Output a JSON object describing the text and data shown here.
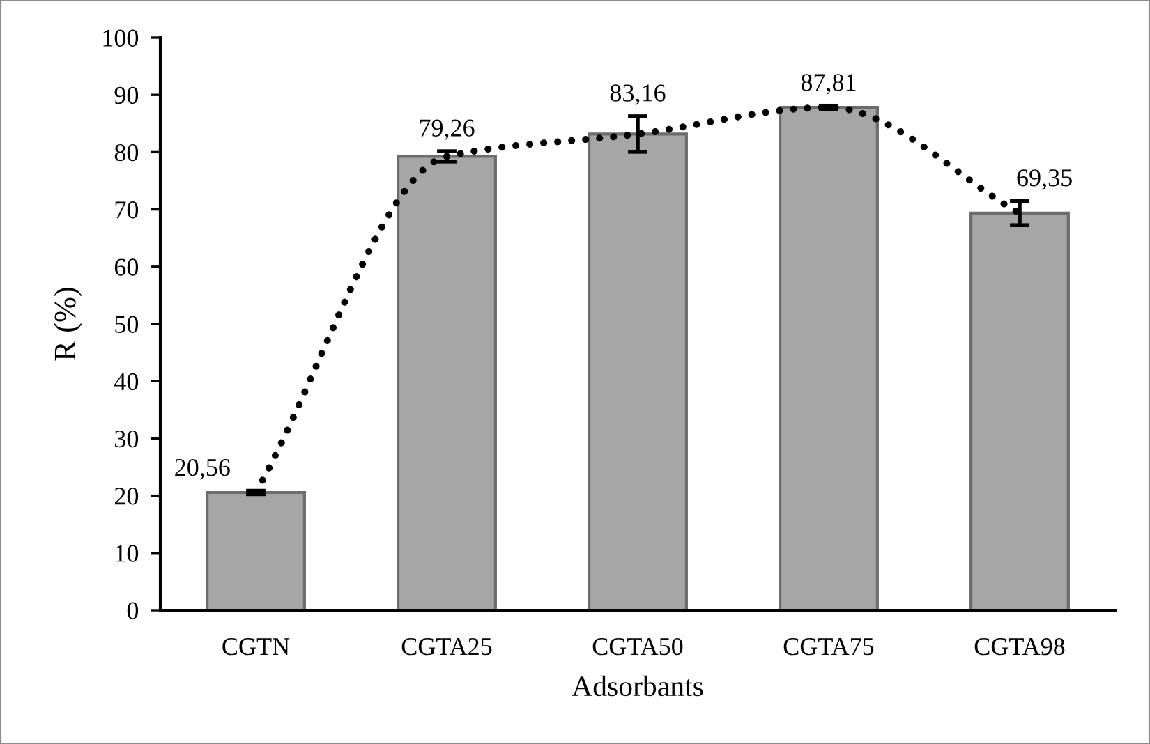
{
  "chart_data": {
    "type": "bar",
    "xlabel": "Adsorbants",
    "ylabel": "R (%)",
    "categories": [
      "CGTN",
      "CGTA25",
      "CGTA50",
      "CGTA75",
      "CGTA98"
    ],
    "series": [
      {
        "color": "#a6a6a6",
        "values": [
          20.56,
          79.26,
          83.16,
          87.81,
          69.35
        ],
        "errors": [
          0.3,
          0.9,
          3.1,
          0.3,
          2.1
        ],
        "value_labels": [
          "20,56",
          "79,26",
          "83,16",
          "87,81",
          "69,35"
        ]
      },
      {
        "type": "line",
        "color": "#000000",
        "line_style": "dotted",
        "values": [
          20.56,
          79.26,
          83.16,
          87.81,
          69.35
        ]
      }
    ],
    "ylim": [
      0,
      100
    ],
    "yticks": [
      0,
      10,
      20,
      30,
      40,
      50,
      60,
      70,
      80,
      90,
      100
    ]
  }
}
